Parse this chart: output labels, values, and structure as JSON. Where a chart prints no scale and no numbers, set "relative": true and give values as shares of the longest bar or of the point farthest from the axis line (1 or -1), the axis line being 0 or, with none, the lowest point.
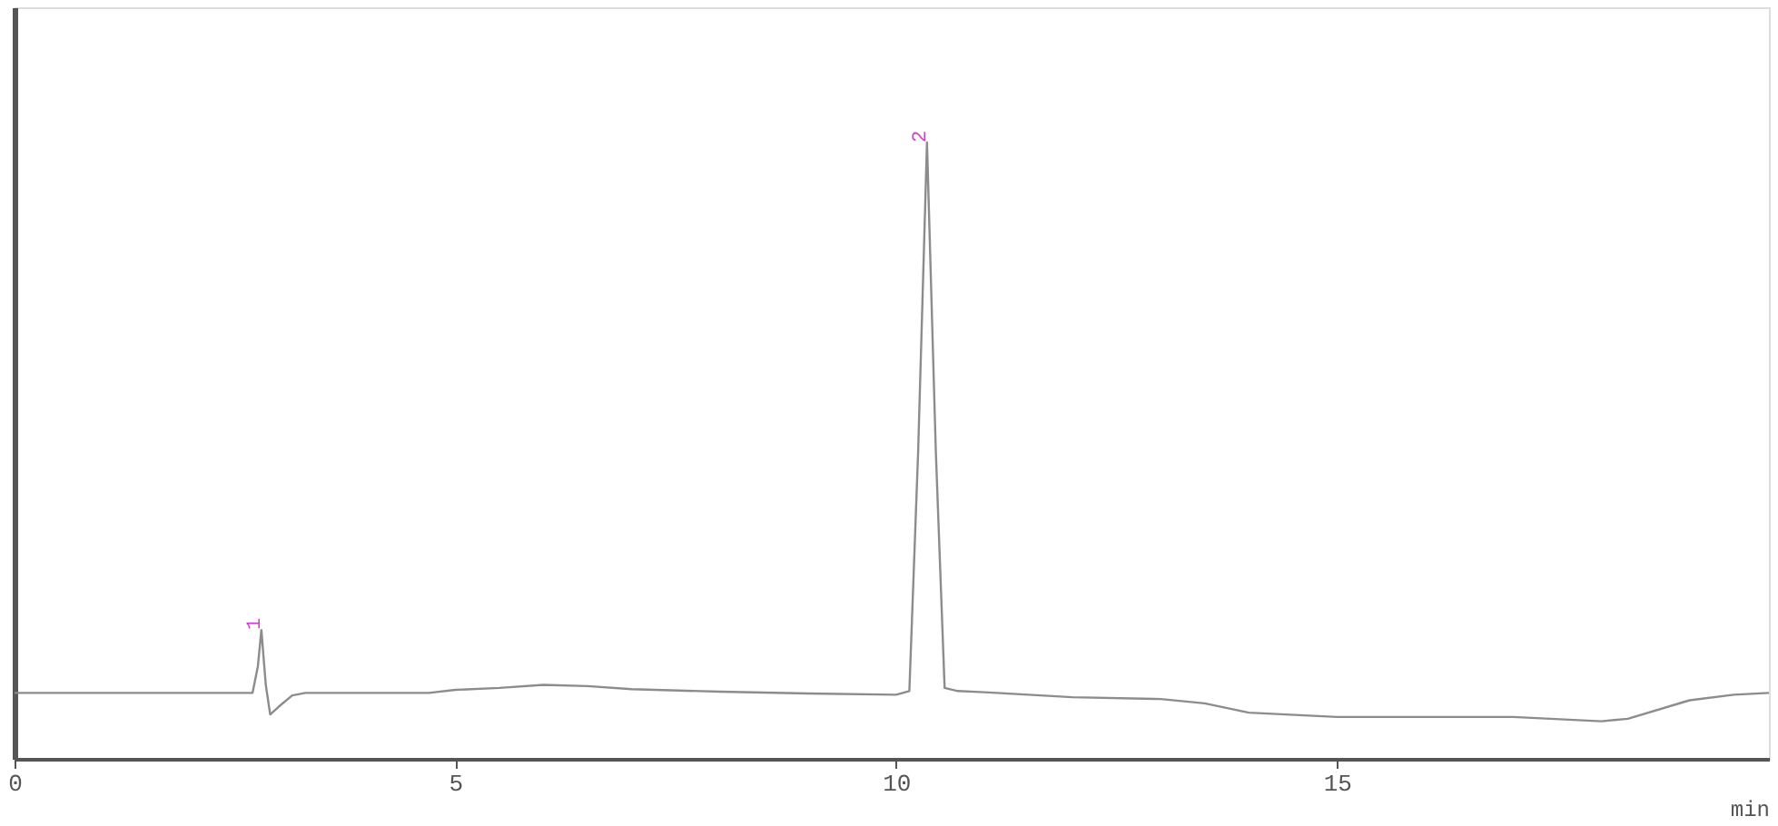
{
  "chart_data": {
    "type": "line",
    "relative": true,
    "xlabel": "min",
    "x": [
      0,
      2.7,
      2.76,
      2.8,
      2.85,
      2.9,
      3.0,
      3.15,
      3.3,
      4.7,
      5.0,
      5.5,
      6.0,
      6.5,
      7.0,
      8.0,
      9.0,
      10.0,
      10.15,
      10.25,
      10.35,
      10.45,
      10.55,
      10.7,
      11.0,
      12.0,
      13.0,
      13.5,
      14.0,
      15.0,
      16.0,
      17.0,
      18.0,
      18.3,
      19.0,
      19.5,
      19.9
    ],
    "series": [
      {
        "color": "#8c8c8c",
        "values": [
          0.107,
          0.107,
          0.15,
          0.209,
          0.12,
          0.072,
          0.085,
          0.103,
          0.107,
          0.107,
          0.112,
          0.115,
          0.12,
          0.118,
          0.113,
          0.109,
          0.106,
          0.104,
          0.11,
          0.5,
          1.0,
          0.5,
          0.115,
          0.11,
          0.108,
          0.1,
          0.097,
          0.09,
          0.075,
          0.068,
          0.068,
          0.068,
          0.061,
          0.065,
          0.095,
          0.104,
          0.107
        ]
      }
    ],
    "xlim": [
      0,
      19.9
    ],
    "xticks": [
      0,
      5,
      10,
      15
    ],
    "annotations": [
      {
        "text": "1",
        "x": 2.8,
        "y": 0.209
      },
      {
        "text": "2",
        "x": 10.35,
        "y": 1.0
      }
    ],
    "grid": false,
    "marker": "none",
    "line_style": "solid"
  }
}
